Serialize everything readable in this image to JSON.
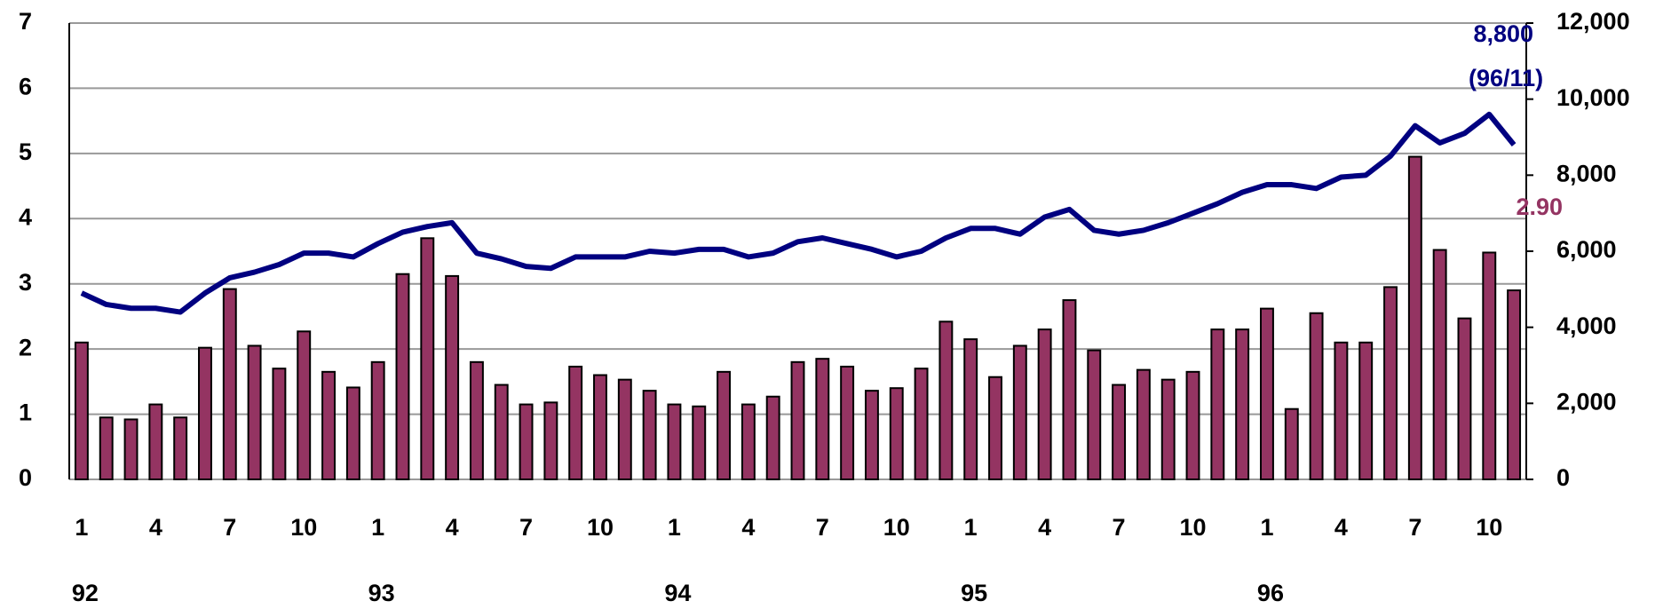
{
  "chart_data": {
    "type": "bar_line",
    "categories": [
      "1",
      null,
      null,
      "4",
      null,
      null,
      "7",
      null,
      null,
      "10",
      null,
      null,
      "1",
      null,
      null,
      "4",
      null,
      null,
      "7",
      null,
      null,
      "10",
      null,
      null,
      "1",
      null,
      null,
      "4",
      null,
      null,
      "7",
      null,
      null,
      "10",
      null,
      null,
      "1",
      null,
      null,
      "4",
      null,
      null,
      "7",
      null,
      null,
      "10",
      null,
      null,
      "1",
      null,
      null,
      "4",
      null,
      null,
      "7",
      null,
      null,
      "10",
      null
    ],
    "groups": [
      {
        "label": "92",
        "size": 12
      },
      {
        "label": "93",
        "size": 12
      },
      {
        "label": "94",
        "size": 12
      },
      {
        "label": "95",
        "size": 12
      },
      {
        "label": "96",
        "size": 11
      }
    ],
    "series": [
      {
        "kind": "bar",
        "color": "#943462",
        "axis": "y",
        "values": [
          2.1,
          0.95,
          0.92,
          1.15,
          0.95,
          2.02,
          2.92,
          2.05,
          1.7,
          2.27,
          1.65,
          1.41,
          1.8,
          3.15,
          3.7,
          3.12,
          1.8,
          1.45,
          1.15,
          1.18,
          1.73,
          1.6,
          1.53,
          1.36,
          1.15,
          1.12,
          1.65,
          1.15,
          1.27,
          1.8,
          1.85,
          1.73,
          1.36,
          1.4,
          1.7,
          2.42,
          2.15,
          1.57,
          2.05,
          2.3,
          2.75,
          1.98,
          1.45,
          1.68,
          1.53,
          1.65,
          2.3,
          2.3,
          2.62,
          1.08,
          2.55,
          2.1,
          2.1,
          2.95,
          4.95,
          3.52,
          2.47,
          3.48,
          2.9
        ]
      },
      {
        "kind": "line",
        "color": "#000080",
        "axis": "y2",
        "values": [
          4900,
          4600,
          4500,
          4500,
          4400,
          4900,
          5300,
          5450,
          5650,
          5950,
          5950,
          5850,
          6200,
          6500,
          6650,
          6750,
          5950,
          5800,
          5600,
          5550,
          5850,
          5850,
          5850,
          6000,
          5950,
          6050,
          6050,
          5850,
          5950,
          6250,
          6350,
          6200,
          6050,
          5850,
          6000,
          6350,
          6600,
          6600,
          6450,
          6900,
          7100,
          6550,
          6450,
          6550,
          6750,
          7000,
          7250,
          7550,
          7750,
          7750,
          7650,
          7950,
          8000,
          8500,
          9300,
          8850,
          9100,
          9600,
          8800
        ]
      }
    ],
    "annotations": [
      {
        "lines": [
          "8,800",
          "(96/11)"
        ],
        "color": "#000080"
      },
      {
        "lines": [
          "2.90"
        ],
        "color": "#943462"
      }
    ],
    "ylim": [
      0,
      7
    ],
    "yticks": [
      0,
      1,
      2,
      3,
      4,
      5,
      6,
      7
    ],
    "y2lim": [
      0,
      12000
    ],
    "y2ticks": [
      0,
      {
        "value": 2000,
        "label": "2,000"
      },
      {
        "value": 4000,
        "label": "4,000"
      },
      {
        "value": 6000,
        "label": "6,000"
      },
      {
        "value": 8000,
        "label": "8,000"
      },
      {
        "value": 10000,
        "label": "10,000"
      },
      {
        "value": 12000,
        "label": "12,000"
      }
    ],
    "grid": true
  }
}
